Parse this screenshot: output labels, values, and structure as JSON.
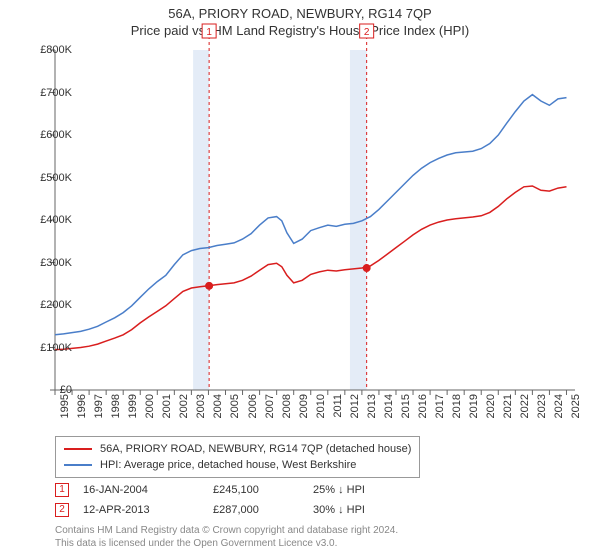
{
  "title": "56A, PRIORY ROAD, NEWBURY, RG14 7QP",
  "subtitle": "Price paid vs. HM Land Registry's House Price Index (HPI)",
  "chart": {
    "type": "line",
    "background_color": "#ffffff",
    "grid_color": "#ffffff",
    "axis_color": "#666666",
    "font_size_axis": 11,
    "font_size_title": 13,
    "xlim": [
      1995,
      2025.5
    ],
    "ylim": [
      0,
      800000
    ],
    "ytick_step": 100000,
    "ytick_prefix": "£",
    "ytick_suffixes": [
      "£0",
      "£100K",
      "£200K",
      "£300K",
      "£400K",
      "£500K",
      "£600K",
      "£700K",
      "£800K"
    ],
    "xticks": [
      1995,
      1996,
      1997,
      1998,
      1999,
      2000,
      2001,
      2002,
      2003,
      2004,
      2005,
      2006,
      2007,
      2008,
      2009,
      2010,
      2011,
      2012,
      2013,
      2014,
      2015,
      2016,
      2017,
      2018,
      2019,
      2020,
      2021,
      2022,
      2023,
      2024,
      2025
    ],
    "series": [
      {
        "name": "property",
        "label": "56A, PRIORY ROAD, NEWBURY, RG14 7QP (detached house)",
        "color": "#d91e1e",
        "line_width": 1.5,
        "data": [
          [
            1995,
            95000
          ],
          [
            1995.5,
            96000
          ],
          [
            1996,
            98000
          ],
          [
            1996.5,
            100000
          ],
          [
            1997,
            103000
          ],
          [
            1997.5,
            108000
          ],
          [
            1998,
            115000
          ],
          [
            1998.5,
            122000
          ],
          [
            1999,
            130000
          ],
          [
            1999.5,
            142000
          ],
          [
            2000,
            158000
          ],
          [
            2000.5,
            172000
          ],
          [
            2001,
            185000
          ],
          [
            2001.5,
            198000
          ],
          [
            2002,
            215000
          ],
          [
            2002.5,
            232000
          ],
          [
            2003,
            240000
          ],
          [
            2003.5,
            243000
          ],
          [
            2004,
            245100
          ],
          [
            2004.5,
            248000
          ],
          [
            2005,
            250000
          ],
          [
            2005.5,
            252000
          ],
          [
            2006,
            258000
          ],
          [
            2006.5,
            268000
          ],
          [
            2007,
            282000
          ],
          [
            2007.5,
            295000
          ],
          [
            2008,
            298000
          ],
          [
            2008.3,
            290000
          ],
          [
            2008.6,
            270000
          ],
          [
            2009,
            252000
          ],
          [
            2009.5,
            258000
          ],
          [
            2010,
            272000
          ],
          [
            2010.5,
            278000
          ],
          [
            2011,
            282000
          ],
          [
            2011.5,
            280000
          ],
          [
            2012,
            283000
          ],
          [
            2012.5,
            285000
          ],
          [
            2013,
            287000
          ],
          [
            2013.5,
            292000
          ],
          [
            2014,
            305000
          ],
          [
            2014.5,
            320000
          ],
          [
            2015,
            335000
          ],
          [
            2015.5,
            350000
          ],
          [
            2016,
            365000
          ],
          [
            2016.5,
            378000
          ],
          [
            2017,
            388000
          ],
          [
            2017.5,
            395000
          ],
          [
            2018,
            400000
          ],
          [
            2018.5,
            403000
          ],
          [
            2019,
            405000
          ],
          [
            2019.5,
            407000
          ],
          [
            2020,
            410000
          ],
          [
            2020.5,
            418000
          ],
          [
            2021,
            432000
          ],
          [
            2021.5,
            450000
          ],
          [
            2022,
            465000
          ],
          [
            2022.5,
            478000
          ],
          [
            2023,
            480000
          ],
          [
            2023.5,
            470000
          ],
          [
            2024,
            468000
          ],
          [
            2024.5,
            475000
          ],
          [
            2025,
            478000
          ]
        ]
      },
      {
        "name": "hpi",
        "label": "HPI: Average price, detached house, West Berkshire",
        "color": "#4a7ec9",
        "line_width": 1.5,
        "data": [
          [
            1995,
            130000
          ],
          [
            1995.5,
            132000
          ],
          [
            1996,
            135000
          ],
          [
            1996.5,
            138000
          ],
          [
            1997,
            143000
          ],
          [
            1997.5,
            150000
          ],
          [
            1998,
            160000
          ],
          [
            1998.5,
            170000
          ],
          [
            1999,
            182000
          ],
          [
            1999.5,
            198000
          ],
          [
            2000,
            218000
          ],
          [
            2000.5,
            238000
          ],
          [
            2001,
            255000
          ],
          [
            2001.5,
            270000
          ],
          [
            2002,
            295000
          ],
          [
            2002.5,
            318000
          ],
          [
            2003,
            328000
          ],
          [
            2003.5,
            333000
          ],
          [
            2004,
            335000
          ],
          [
            2004.5,
            340000
          ],
          [
            2005,
            343000
          ],
          [
            2005.5,
            346000
          ],
          [
            2006,
            355000
          ],
          [
            2006.5,
            368000
          ],
          [
            2007,
            388000
          ],
          [
            2007.5,
            405000
          ],
          [
            2008,
            408000
          ],
          [
            2008.3,
            398000
          ],
          [
            2008.6,
            370000
          ],
          [
            2009,
            345000
          ],
          [
            2009.5,
            355000
          ],
          [
            2010,
            375000
          ],
          [
            2010.5,
            382000
          ],
          [
            2011,
            388000
          ],
          [
            2011.5,
            385000
          ],
          [
            2012,
            390000
          ],
          [
            2012.5,
            392000
          ],
          [
            2013,
            398000
          ],
          [
            2013.5,
            408000
          ],
          [
            2014,
            425000
          ],
          [
            2014.5,
            445000
          ],
          [
            2015,
            465000
          ],
          [
            2015.5,
            485000
          ],
          [
            2016,
            505000
          ],
          [
            2016.5,
            522000
          ],
          [
            2017,
            535000
          ],
          [
            2017.5,
            545000
          ],
          [
            2018,
            553000
          ],
          [
            2018.5,
            558000
          ],
          [
            2019,
            560000
          ],
          [
            2019.5,
            562000
          ],
          [
            2020,
            568000
          ],
          [
            2020.5,
            580000
          ],
          [
            2021,
            600000
          ],
          [
            2021.5,
            628000
          ],
          [
            2022,
            655000
          ],
          [
            2022.5,
            680000
          ],
          [
            2023,
            695000
          ],
          [
            2023.5,
            680000
          ],
          [
            2024,
            670000
          ],
          [
            2024.5,
            685000
          ],
          [
            2025,
            688000
          ]
        ]
      }
    ],
    "sale_markers": [
      {
        "index": 1,
        "date_x": 2004.04,
        "date_label": "16-JAN-2004",
        "price": 245100,
        "price_label": "£245,100",
        "pct_label": "25% ↓ HPI",
        "line_color": "#d91e1e",
        "shade_color": "#d9e4f3",
        "shade_from": 2003.1,
        "shade_to": 2004.04
      },
      {
        "index": 2,
        "date_x": 2013.28,
        "date_label": "12-APR-2013",
        "price": 287000,
        "price_label": "£287,000",
        "pct_label": "30% ↓ HPI",
        "line_color": "#d91e1e",
        "shade_color": "#d9e4f3",
        "shade_from": 2012.3,
        "shade_to": 2013.28
      }
    ]
  },
  "attribution": {
    "line1": "Contains HM Land Registry data © Crown copyright and database right 2024.",
    "line2": "This data is licensed under the Open Government Licence v3.0."
  }
}
